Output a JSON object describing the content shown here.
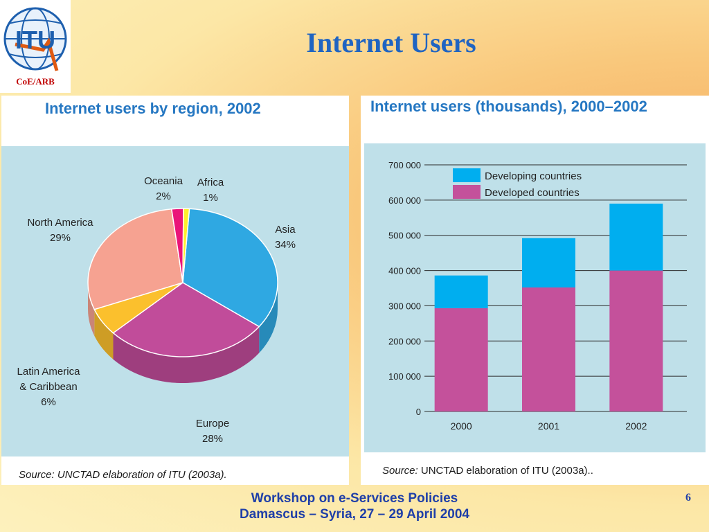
{
  "slide": {
    "title": "Internet Users",
    "logo_text": "ITU",
    "logo_caption": "CoE/ARB",
    "footer_line1": "Workshop on e-Services Policies",
    "footer_line2": "Damascus – Syria,   27 – 29 April  2004",
    "page_number": "6"
  },
  "colors": {
    "title": "#1f64c2",
    "chart_title": "#2577c2",
    "plot_background": "#bfe0e9",
    "developing": "#00aeef",
    "developed": "#c4519b"
  },
  "chart_data": [
    {
      "type": "pie",
      "title": "Internet users by region, 2002",
      "source_label": "Source:",
      "source_text": "UNCTAD elaboration of ITU (2003a).",
      "slices": [
        {
          "label": "Asia",
          "value": 34,
          "value_label": "34%",
          "color": "#2fa8e2"
        },
        {
          "label": "Europe",
          "value": 28,
          "value_label": "28%",
          "color": "#c14c9a"
        },
        {
          "label_line1": "Latin America",
          "label_line2": "& Caribbean",
          "label": "Latin America & Caribbean",
          "value": 6,
          "value_label": "6%",
          "color": "#fbc02d"
        },
        {
          "label": "North America",
          "value": 29,
          "value_label": "29%",
          "color": "#f6a291"
        },
        {
          "label": "Oceania",
          "value": 2,
          "value_label": "2%",
          "color": "#ea1479"
        },
        {
          "label": "Africa",
          "value": 1,
          "value_label": "1%",
          "color": "#ffee2c"
        }
      ]
    },
    {
      "type": "bar",
      "stacked": true,
      "title": "Internet users (thousands), 2000–2002",
      "source_label": "Source:",
      "source_text": "UNCTAD elaboration of ITU (2003a)..",
      "categories": [
        "2000",
        "2001",
        "2002"
      ],
      "series": [
        {
          "name": "Developed countries",
          "values": [
            293000,
            352000,
            400000
          ],
          "color": "#c4519b"
        },
        {
          "name": "Developing countries",
          "values": [
            93000,
            140000,
            190000
          ],
          "color": "#00aeef"
        }
      ],
      "ylim": [
        0,
        700000
      ],
      "yticks": [
        0,
        100000,
        200000,
        300000,
        400000,
        500000,
        600000,
        700000
      ],
      "ytick_labels": [
        "0",
        "100 000",
        "200 000",
        "300 000",
        "400 000",
        "500 000",
        "600 000",
        "700 000"
      ],
      "legend": [
        {
          "name": "Developing countries",
          "color": "#00aeef"
        },
        {
          "name": "Developed countries",
          "color": "#c4519b"
        }
      ],
      "legend_position": "top-left",
      "grid": true
    }
  ]
}
